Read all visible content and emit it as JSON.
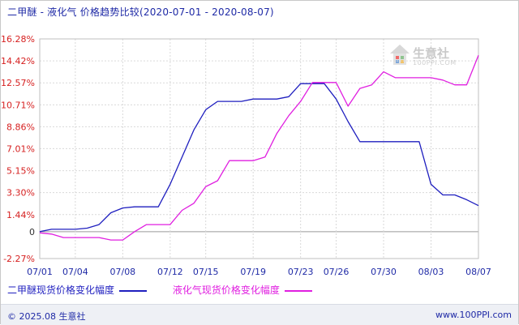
{
  "title": {
    "main": "二甲醚 - 液化气 价格趋势比较",
    "range": "(2020-07-01 - 2020-08-07)"
  },
  "watermark": {
    "brand": "生意社",
    "url": "100PPI.COM"
  },
  "footer": {
    "copyright": "© 2025.08 生意社",
    "website": "www.100PPI.com"
  },
  "colors": {
    "series1": "#1f1fbf",
    "series2": "#e01fe0",
    "positive_tick": "#d62020",
    "negative_tick": "#d62020",
    "zero_tick": "#333333",
    "x_tick": "#1f2aa6",
    "grid": "#d9d9d9"
  },
  "chart_data": {
    "type": "line",
    "x_ticks": [
      "07/01",
      "07/04",
      "07/08",
      "07/12",
      "07/15",
      "07/19",
      "07/23",
      "07/26",
      "07/30",
      "08/03",
      "08/07"
    ],
    "y_ticks": [
      "16.28%",
      "14.42%",
      "12.57%",
      "10.71%",
      "8.86%",
      "7.01%",
      "5.15%",
      "3.30%",
      "1.44%",
      "0",
      "-2.27%"
    ],
    "ylim": [
      -2.27,
      16.28
    ],
    "grid": true,
    "legend_position": "bottom",
    "series": [
      {
        "name": "二甲醚现货价格变化幅度",
        "x": [
          "07/01",
          "07/02",
          "07/03",
          "07/04",
          "07/05",
          "07/06",
          "07/07",
          "07/08",
          "07/09",
          "07/10",
          "07/11",
          "07/12",
          "07/13",
          "07/14",
          "07/15",
          "07/16",
          "07/17",
          "07/18",
          "07/19",
          "07/20",
          "07/21",
          "07/22",
          "07/23",
          "07/24",
          "07/25",
          "07/26",
          "07/27",
          "07/28",
          "07/29",
          "07/30",
          "07/31",
          "08/01",
          "08/02",
          "08/03",
          "08/04",
          "08/05",
          "08/06",
          "08/07"
        ],
        "values": [
          0,
          0.2,
          0.2,
          0.2,
          0.3,
          0.6,
          1.6,
          2.0,
          2.1,
          2.1,
          2.1,
          4.0,
          6.3,
          8.6,
          10.3,
          11.0,
          11.0,
          11.0,
          11.2,
          11.2,
          11.2,
          11.4,
          12.5,
          12.5,
          12.5,
          11.2,
          9.3,
          7.6,
          7.6,
          7.6,
          7.6,
          7.6,
          7.6,
          4.0,
          3.1,
          3.1,
          2.7,
          2.2
        ]
      },
      {
        "name": "液化气现货价格变化幅度",
        "x": [
          "07/01",
          "07/02",
          "07/03",
          "07/04",
          "07/05",
          "07/06",
          "07/07",
          "07/08",
          "07/09",
          "07/10",
          "07/11",
          "07/12",
          "07/13",
          "07/14",
          "07/15",
          "07/16",
          "07/17",
          "07/18",
          "07/19",
          "07/20",
          "07/21",
          "07/22",
          "07/23",
          "07/24",
          "07/25",
          "07/26",
          "07/27",
          "07/28",
          "07/29",
          "07/30",
          "07/31",
          "08/01",
          "08/02",
          "08/03",
          "08/04",
          "08/05",
          "08/06",
          "08/07"
        ],
        "values": [
          -0.1,
          -0.2,
          -0.5,
          -0.5,
          -0.5,
          -0.5,
          -0.7,
          -0.7,
          0,
          0.6,
          0.6,
          0.6,
          1.8,
          2.4,
          3.8,
          4.3,
          6.0,
          6.0,
          6.0,
          6.3,
          8.3,
          9.8,
          11.0,
          12.6,
          12.6,
          12.6,
          10.6,
          12.1,
          12.4,
          13.5,
          13.0,
          13.0,
          13.0,
          13.0,
          12.8,
          12.4,
          12.4,
          14.9
        ]
      }
    ]
  }
}
